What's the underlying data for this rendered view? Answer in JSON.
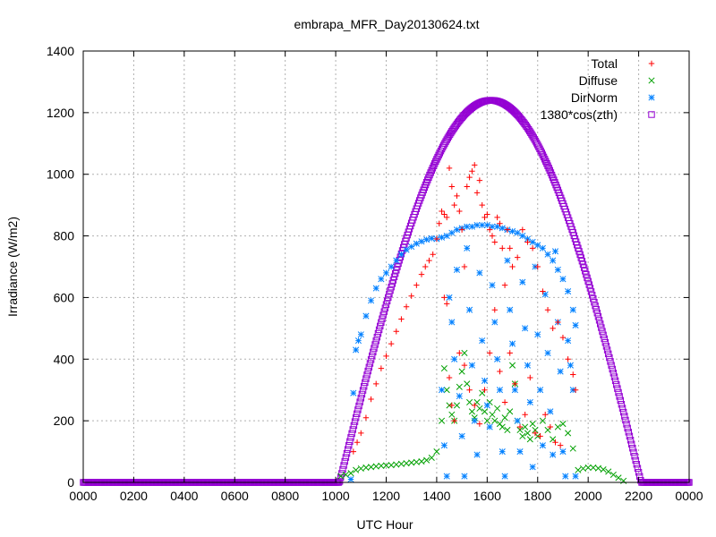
{
  "chart_data": {
    "type": "scatter",
    "title": "embrapa_MFR_Day20130624.txt",
    "xlabel": "UTC Hour",
    "ylabel": "Irradiance (W/m2)",
    "xlim": [
      0,
      24
    ],
    "ylim": [
      0,
      1400
    ],
    "grid": true,
    "legend_position": "top-right",
    "x_ticks": [
      {
        "value": 0,
        "label": "0000"
      },
      {
        "value": 2,
        "label": "0200"
      },
      {
        "value": 4,
        "label": "0400"
      },
      {
        "value": 6,
        "label": "0600"
      },
      {
        "value": 8,
        "label": "0800"
      },
      {
        "value": 10,
        "label": "1000"
      },
      {
        "value": 12,
        "label": "1200"
      },
      {
        "value": 14,
        "label": "1400"
      },
      {
        "value": 16,
        "label": "1600"
      },
      {
        "value": 18,
        "label": "1800"
      },
      {
        "value": 20,
        "label": "2000"
      },
      {
        "value": 22,
        "label": "2200"
      },
      {
        "value": 24,
        "label": "0000"
      }
    ],
    "y_ticks": [
      0,
      200,
      400,
      600,
      800,
      1000,
      1200,
      1400
    ],
    "series": [
      {
        "name": "Total",
        "marker": "+",
        "color": "#ff0000",
        "points": [
          [
            10.7,
            100
          ],
          [
            10.85,
            130
          ],
          [
            11.0,
            160
          ],
          [
            11.2,
            210
          ],
          [
            11.4,
            270
          ],
          [
            11.6,
            320
          ],
          [
            11.8,
            370
          ],
          [
            12.0,
            410
          ],
          [
            12.2,
            450
          ],
          [
            12.4,
            490
          ],
          [
            12.6,
            530
          ],
          [
            12.8,
            570
          ],
          [
            13.0,
            605
          ],
          [
            13.2,
            640
          ],
          [
            13.4,
            675
          ],
          [
            13.55,
            700
          ],
          [
            13.7,
            720
          ],
          [
            13.85,
            740
          ],
          [
            14.0,
            790
          ],
          [
            14.1,
            840
          ],
          [
            14.2,
            880
          ],
          [
            14.3,
            870
          ],
          [
            14.4,
            860
          ],
          [
            14.5,
            1020
          ],
          [
            14.6,
            960
          ],
          [
            14.7,
            900
          ],
          [
            14.8,
            930
          ],
          [
            14.9,
            880
          ],
          [
            15.0,
            820
          ],
          [
            15.1,
            700
          ],
          [
            15.2,
            960
          ],
          [
            15.3,
            990
          ],
          [
            15.4,
            1010
          ],
          [
            15.5,
            1030
          ],
          [
            15.6,
            940
          ],
          [
            15.7,
            980
          ],
          [
            15.8,
            900
          ],
          [
            15.9,
            860
          ],
          [
            16.0,
            870
          ],
          [
            16.1,
            820
          ],
          [
            16.2,
            800
          ],
          [
            16.3,
            780
          ],
          [
            16.4,
            860
          ],
          [
            16.5,
            840
          ],
          [
            16.6,
            760
          ],
          [
            16.7,
            640
          ],
          [
            16.8,
            820
          ],
          [
            16.9,
            760
          ],
          [
            17.0,
            700
          ],
          [
            17.2,
            730
          ],
          [
            17.4,
            820
          ],
          [
            17.6,
            780
          ],
          [
            17.8,
            760
          ],
          [
            18.0,
            700
          ],
          [
            18.2,
            620
          ],
          [
            18.4,
            560
          ],
          [
            18.6,
            500
          ],
          [
            18.8,
            520
          ],
          [
            19.0,
            470
          ],
          [
            19.2,
            400
          ],
          [
            19.4,
            350
          ],
          [
            19.5,
            300
          ],
          [
            14.3,
            600
          ],
          [
            14.4,
            580
          ],
          [
            14.5,
            340
          ],
          [
            14.6,
            250
          ],
          [
            14.7,
            200
          ],
          [
            14.9,
            420
          ],
          [
            15.1,
            380
          ],
          [
            15.3,
            300
          ],
          [
            15.5,
            250
          ],
          [
            15.7,
            190
          ],
          [
            15.9,
            300
          ],
          [
            16.1,
            420
          ],
          [
            16.3,
            560
          ],
          [
            16.5,
            360
          ],
          [
            16.7,
            260
          ],
          [
            16.9,
            420
          ],
          [
            17.1,
            320
          ],
          [
            17.3,
            180
          ],
          [
            17.5,
            220
          ],
          [
            17.7,
            340
          ],
          [
            17.9,
            160
          ],
          [
            18.1,
            150
          ],
          [
            18.3,
            220
          ],
          [
            18.5,
            180
          ],
          [
            18.7,
            130
          ],
          [
            18.9,
            120
          ]
        ]
      },
      {
        "name": "Diffuse",
        "marker": "x",
        "color": "#00a000",
        "points": [
          [
            10.2,
            20
          ],
          [
            10.4,
            25
          ],
          [
            10.6,
            30
          ],
          [
            10.8,
            40
          ],
          [
            11.0,
            45
          ],
          [
            11.2,
            48
          ],
          [
            11.4,
            50
          ],
          [
            11.6,
            52
          ],
          [
            11.8,
            54
          ],
          [
            12.0,
            55
          ],
          [
            12.2,
            56
          ],
          [
            12.4,
            58
          ],
          [
            12.6,
            60
          ],
          [
            12.8,
            62
          ],
          [
            13.0,
            64
          ],
          [
            13.2,
            66
          ],
          [
            13.4,
            68
          ],
          [
            13.6,
            72
          ],
          [
            13.8,
            80
          ],
          [
            14.0,
            100
          ],
          [
            14.2,
            200
          ],
          [
            14.3,
            370
          ],
          [
            14.4,
            300
          ],
          [
            14.5,
            250
          ],
          [
            14.6,
            220
          ],
          [
            14.7,
            200
          ],
          [
            14.8,
            250
          ],
          [
            14.9,
            310
          ],
          [
            15.0,
            360
          ],
          [
            15.1,
            420
          ],
          [
            15.2,
            320
          ],
          [
            15.3,
            260
          ],
          [
            15.4,
            230
          ],
          [
            15.5,
            210
          ],
          [
            15.6,
            260
          ],
          [
            15.7,
            240
          ],
          [
            15.8,
            290
          ],
          [
            15.9,
            230
          ],
          [
            16.0,
            200
          ],
          [
            16.1,
            260
          ],
          [
            16.2,
            220
          ],
          [
            16.3,
            200
          ],
          [
            16.4,
            240
          ],
          [
            16.5,
            190
          ],
          [
            16.6,
            180
          ],
          [
            16.7,
            210
          ],
          [
            16.8,
            170
          ],
          [
            16.9,
            230
          ],
          [
            17.0,
            380
          ],
          [
            17.1,
            320
          ],
          [
            17.2,
            200
          ],
          [
            17.3,
            170
          ],
          [
            17.4,
            150
          ],
          [
            17.5,
            180
          ],
          [
            17.6,
            160
          ],
          [
            17.7,
            140
          ],
          [
            17.8,
            190
          ],
          [
            17.9,
            170
          ],
          [
            18.0,
            150
          ],
          [
            18.2,
            200
          ],
          [
            18.4,
            170
          ],
          [
            18.6,
            140
          ],
          [
            18.8,
            180
          ],
          [
            19.0,
            190
          ],
          [
            19.2,
            160
          ],
          [
            19.4,
            110
          ],
          [
            19.6,
            40
          ],
          [
            19.8,
            45
          ],
          [
            20.0,
            48
          ],
          [
            20.2,
            48
          ],
          [
            20.4,
            46
          ],
          [
            20.6,
            42
          ],
          [
            20.8,
            35
          ],
          [
            21.0,
            25
          ],
          [
            21.2,
            15
          ],
          [
            21.4,
            5
          ]
        ]
      },
      {
        "name": "DirNorm",
        "marker": "*",
        "color": "#0080ff",
        "points": [
          [
            10.6,
            10
          ],
          [
            10.7,
            290
          ],
          [
            10.8,
            430
          ],
          [
            10.9,
            460
          ],
          [
            11.0,
            480
          ],
          [
            11.2,
            540
          ],
          [
            11.4,
            590
          ],
          [
            11.6,
            630
          ],
          [
            11.8,
            660
          ],
          [
            12.0,
            680
          ],
          [
            12.2,
            700
          ],
          [
            12.4,
            720
          ],
          [
            12.6,
            740
          ],
          [
            12.8,
            755
          ],
          [
            13.0,
            765
          ],
          [
            13.2,
            775
          ],
          [
            13.4,
            782
          ],
          [
            13.6,
            788
          ],
          [
            13.8,
            792
          ],
          [
            14.0,
            790
          ],
          [
            14.2,
            795
          ],
          [
            14.4,
            800
          ],
          [
            14.6,
            810
          ],
          [
            14.8,
            820
          ],
          [
            15.0,
            825
          ],
          [
            15.2,
            830
          ],
          [
            15.4,
            830
          ],
          [
            15.6,
            835
          ],
          [
            15.8,
            835
          ],
          [
            16.0,
            835
          ],
          [
            16.2,
            830
          ],
          [
            16.4,
            830
          ],
          [
            16.6,
            825
          ],
          [
            16.8,
            820
          ],
          [
            17.0,
            815
          ],
          [
            17.2,
            810
          ],
          [
            17.4,
            800
          ],
          [
            17.6,
            790
          ],
          [
            17.8,
            780
          ],
          [
            18.0,
            770
          ],
          [
            18.2,
            760
          ],
          [
            18.4,
            740
          ],
          [
            18.6,
            720
          ],
          [
            18.8,
            690
          ],
          [
            19.0,
            660
          ],
          [
            19.2,
            620
          ],
          [
            19.4,
            560
          ],
          [
            19.5,
            510
          ],
          [
            14.2,
            300
          ],
          [
            14.3,
            120
          ],
          [
            14.4,
            20
          ],
          [
            14.5,
            600
          ],
          [
            14.6,
            520
          ],
          [
            14.7,
            400
          ],
          [
            14.8,
            690
          ],
          [
            14.9,
            280
          ],
          [
            15.0,
            150
          ],
          [
            15.1,
            20
          ],
          [
            15.2,
            760
          ],
          [
            15.3,
            560
          ],
          [
            15.4,
            380
          ],
          [
            15.5,
            200
          ],
          [
            15.6,
            90
          ],
          [
            15.7,
            680
          ],
          [
            15.8,
            460
          ],
          [
            15.9,
            330
          ],
          [
            16.0,
            250
          ],
          [
            16.1,
            180
          ],
          [
            16.2,
            640
          ],
          [
            16.3,
            520
          ],
          [
            16.4,
            400
          ],
          [
            16.5,
            300
          ],
          [
            16.6,
            100
          ],
          [
            16.7,
            20
          ],
          [
            16.8,
            720
          ],
          [
            16.9,
            560
          ],
          [
            17.0,
            450
          ],
          [
            17.1,
            300
          ],
          [
            17.2,
            200
          ],
          [
            17.3,
            100
          ],
          [
            17.4,
            650
          ],
          [
            17.5,
            500
          ],
          [
            17.6,
            380
          ],
          [
            17.7,
            260
          ],
          [
            17.8,
            50
          ],
          [
            17.9,
            700
          ],
          [
            18.0,
            480
          ],
          [
            18.1,
            300
          ],
          [
            18.2,
            120
          ],
          [
            18.3,
            610
          ],
          [
            18.4,
            420
          ],
          [
            18.5,
            230
          ],
          [
            18.6,
            90
          ],
          [
            18.7,
            750
          ],
          [
            18.8,
            520
          ],
          [
            18.9,
            360
          ],
          [
            19.0,
            100
          ],
          [
            19.1,
            20
          ],
          [
            19.2,
            460
          ],
          [
            19.3,
            380
          ],
          [
            19.4,
            300
          ],
          [
            19.5,
            20
          ]
        ]
      },
      {
        "name": "1380*cos(zth)",
        "marker": "square",
        "color": "#9400d3",
        "formula": {
          "sunrise": 10.15,
          "solar_noon": 16.15,
          "sunset": 22.1,
          "peak": 1240
        }
      }
    ]
  }
}
